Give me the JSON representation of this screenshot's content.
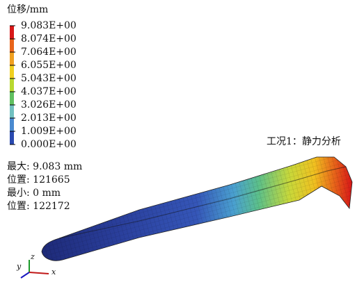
{
  "legend": {
    "title": "位移/mm",
    "labels": [
      "9.083E+00",
      "8.074E+00",
      "7.064E+00",
      "6.055E+00",
      "5.043E+00",
      "4.037E+00",
      "3.026E+00",
      "2.013E+00",
      "1.009E+00",
      "0.000E+00"
    ]
  },
  "case_label": "工况1：静力分析",
  "stats": [
    "最大: 9.083 mm",
    "位置: 121665",
    "最小: 0 mm",
    "位置: 122172"
  ],
  "axes": {
    "x": "x",
    "y": "y",
    "z": "z"
  }
}
